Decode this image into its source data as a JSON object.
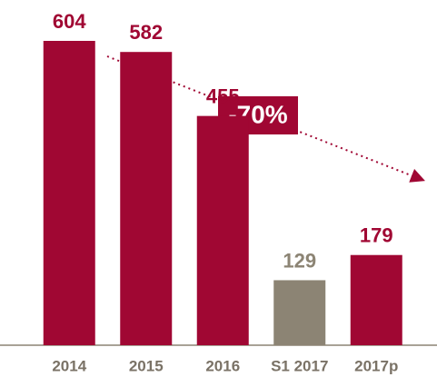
{
  "chart_data": {
    "type": "bar",
    "categories": [
      "2014",
      "2015",
      "2016",
      "S1 2017",
      "2017p"
    ],
    "values": [
      604,
      582,
      455,
      129,
      179
    ],
    "colors": [
      "#a00733",
      "#a00733",
      "#a00733",
      "#8c8474",
      "#a00733"
    ],
    "annotation": "-70%"
  }
}
